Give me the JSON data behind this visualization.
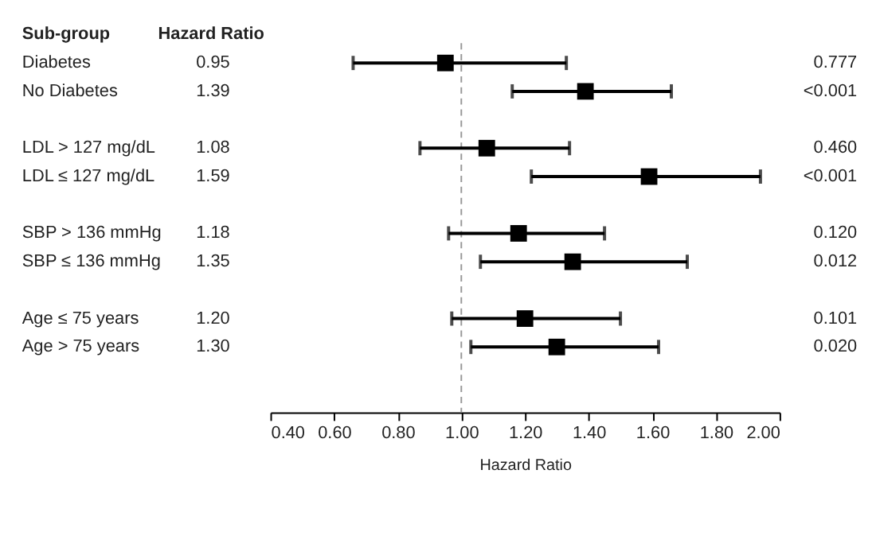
{
  "chart_data": {
    "type": "scatter",
    "orientation": "horizontal",
    "marker": "square",
    "color": "#000000",
    "ylabel": "Sub-group",
    "xlabel": "Hazard Ratio",
    "categories": [
      "Diabetes",
      "No Diabetes",
      null,
      "LDL > 127 mg/dL",
      "LDL ≤ 127 mg/dL",
      null,
      "SBP > 136 mmHg",
      "SBP ≤ 136 mmHg",
      null,
      "Age ≤ 75 years",
      "Age > 75 years"
    ],
    "values": [
      0.95,
      1.39,
      null,
      1.08,
      1.59,
      null,
      1.18,
      1.35,
      null,
      1.2,
      1.3
    ],
    "value_labels": [
      "0.95",
      "1.39",
      null,
      "1.08",
      "1.59",
      null,
      "1.18",
      "1.35",
      null,
      "1.20",
      "1.30"
    ],
    "errors": [
      [
        0.66,
        1.33
      ],
      [
        1.16,
        1.66
      ],
      null,
      [
        0.87,
        1.34
      ],
      [
        1.22,
        1.94
      ],
      null,
      [
        0.96,
        1.45
      ],
      [
        1.06,
        1.71
      ],
      null,
      [
        0.97,
        1.5
      ],
      [
        1.03,
        1.62
      ]
    ],
    "xlim": [
      0.4,
      2.0
    ],
    "xticks": [
      {
        "value": 0.4,
        "label": "0.40"
      },
      {
        "value": 0.6,
        "label": "0.60"
      },
      {
        "value": 0.8,
        "label": "0.80"
      },
      {
        "value": 1.0,
        "label": "1.00"
      },
      {
        "value": 1.2,
        "label": "1.20"
      },
      {
        "value": 1.4,
        "label": "1.40"
      },
      {
        "value": 1.6,
        "label": "1.60"
      },
      {
        "value": 1.8,
        "label": "1.80"
      },
      {
        "value": 2.0,
        "label": "2.00"
      }
    ],
    "ref_lines": [
      {
        "axis": "x",
        "value": 1.0,
        "color": "#999999",
        "line_style": "dashed"
      }
    ],
    "annotations": [
      "Hazard Ratio",
      "0.777",
      "<0.001",
      "0.460",
      "<0.001",
      "0.120",
      "0.012",
      "0.101",
      "0.020"
    ]
  }
}
